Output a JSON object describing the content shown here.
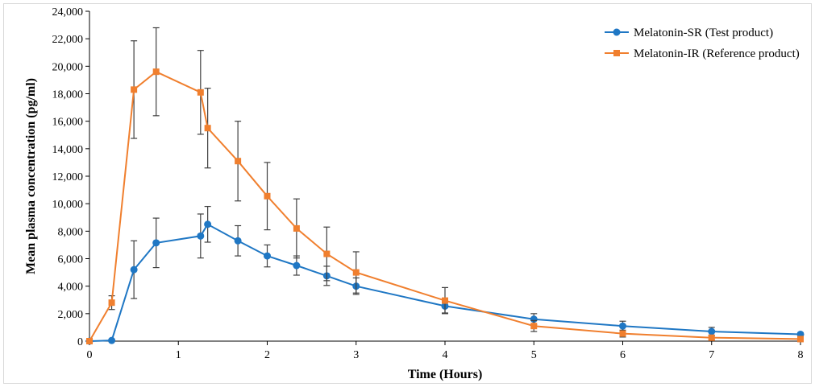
{
  "chart_data": {
    "type": "line",
    "title": "",
    "xlabel": "Time (Hours)",
    "ylabel": "Mean plasma concentration (pg/ml)",
    "xlim": [
      0,
      8
    ],
    "ylim": [
      0,
      24000
    ],
    "x_ticks": [
      0,
      1,
      2,
      3,
      4,
      5,
      6,
      7,
      8
    ],
    "x_tick_labels": [
      "0",
      "1",
      "2",
      "3",
      "4",
      "5",
      "6",
      "7",
      "8"
    ],
    "y_ticks": [
      0,
      2000,
      4000,
      6000,
      8000,
      10000,
      12000,
      14000,
      16000,
      18000,
      20000,
      22000,
      24000
    ],
    "y_tick_labels": [
      "0",
      "2,000",
      "4,000",
      "6,000",
      "8,000",
      "10,000",
      "12,000",
      "14,000",
      "16,000",
      "18,000",
      "20,000",
      "22,000",
      "24,000"
    ],
    "grid": false,
    "legend_position": "top-right",
    "series": [
      {
        "name": "Melatonin-SR (Test product)",
        "color": "#1f77c4",
        "marker": "circle",
        "x": [
          0,
          0.25,
          0.5,
          0.75,
          1.25,
          1.33,
          1.67,
          2,
          2.33,
          2.67,
          3,
          4,
          5,
          6,
          7,
          8
        ],
        "y": [
          0,
          50,
          5200,
          7150,
          7650,
          8500,
          7300,
          6200,
          5500,
          4750,
          4000,
          2550,
          1600,
          1100,
          700,
          500
        ],
        "error": [
          0,
          0,
          2100,
          1800,
          1600,
          1300,
          1100,
          800,
          700,
          700,
          600,
          500,
          400,
          350,
          300,
          100
        ]
      },
      {
        "name": "Melatonin-IR (Reference product)",
        "color": "#f07f2e",
        "marker": "square",
        "x": [
          0,
          0.25,
          0.5,
          0.75,
          1.25,
          1.33,
          1.67,
          2,
          2.33,
          2.67,
          3,
          4,
          5,
          6,
          7,
          8
        ],
        "y": [
          0,
          2800,
          18300,
          19600,
          18100,
          15500,
          13100,
          10550,
          8200,
          6350,
          5000,
          2950,
          1100,
          550,
          250,
          150
        ],
        "error": [
          0,
          500,
          3550,
          3200,
          3050,
          2900,
          2900,
          2450,
          2150,
          1950,
          1500,
          950,
          400,
          250,
          150,
          100
        ]
      }
    ]
  }
}
